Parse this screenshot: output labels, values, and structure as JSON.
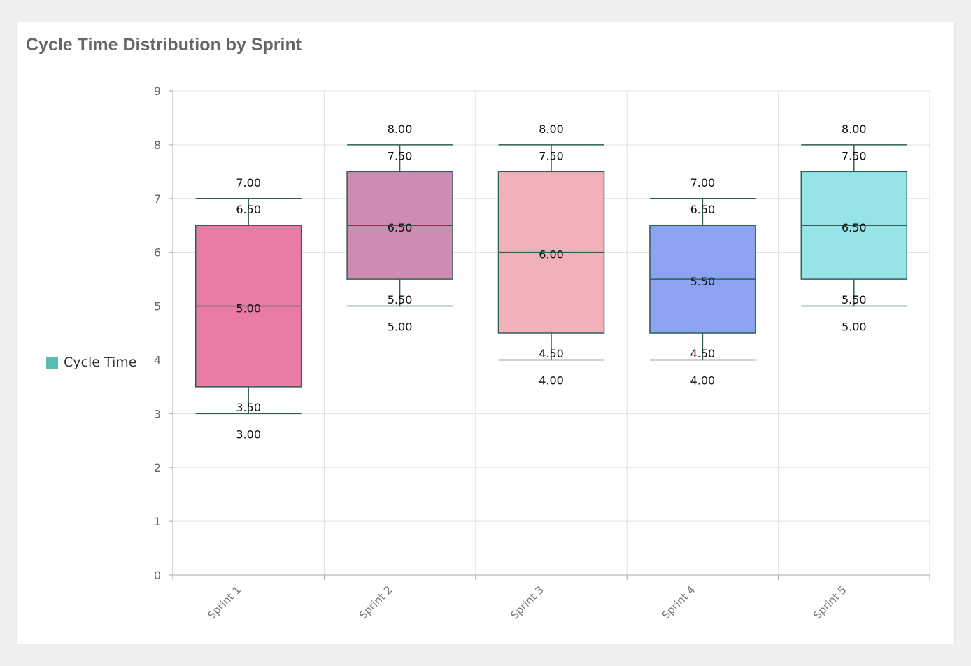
{
  "title": "Cycle Time Distribution by Sprint",
  "legend": {
    "label": "Cycle Time",
    "color": "#56bdb0"
  },
  "chart_data": {
    "type": "boxplot",
    "title": "Cycle Time Distribution by Sprint",
    "categories": [
      "Sprint 1",
      "Sprint 2",
      "Sprint 3",
      "Sprint 4",
      "Sprint 5"
    ],
    "series": [
      {
        "name": "Cycle Time",
        "boxes": [
          {
            "min": 3.0,
            "q1": 3.5,
            "median": 5.0,
            "q3": 6.5,
            "max": 7.0,
            "color": "#e87ca5"
          },
          {
            "min": 5.0,
            "q1": 5.5,
            "median": 6.5,
            "q3": 7.5,
            "max": 8.0,
            "color": "#cf8cb3"
          },
          {
            "min": 4.0,
            "q1": 4.5,
            "median": 6.0,
            "q3": 7.5,
            "max": 8.0,
            "color": "#f2b0b9"
          },
          {
            "min": 4.0,
            "q1": 4.5,
            "median": 5.5,
            "q3": 6.5,
            "max": 7.0,
            "color": "#8ba3f0"
          },
          {
            "min": 5.0,
            "q1": 5.5,
            "median": 6.5,
            "q3": 7.5,
            "max": 8.0,
            "color": "#96e3e8"
          }
        ]
      }
    ],
    "ylim": [
      0,
      9
    ],
    "yticks": [
      0,
      1,
      2,
      3,
      4,
      5,
      6,
      7,
      8,
      9
    ],
    "grid": true,
    "legend_position": "left",
    "stroke_color": "#2f5f55"
  }
}
